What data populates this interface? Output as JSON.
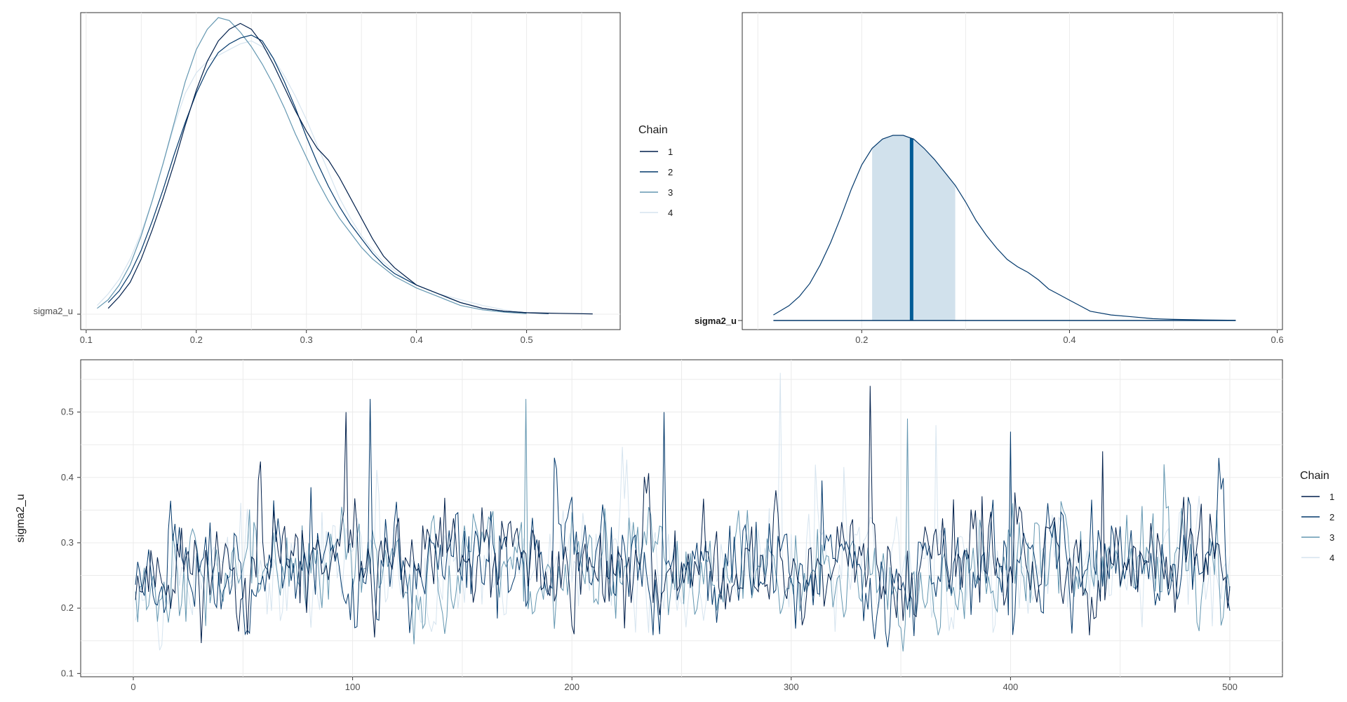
{
  "chart_data": [
    {
      "type": "line",
      "plot": "density-overlay",
      "y_tick_labels": [
        "sigma2_u"
      ],
      "x_ticks": [
        0.1,
        0.2,
        0.3,
        0.4,
        0.5
      ],
      "xlim": [
        0.095,
        0.585
      ],
      "grid": true,
      "legend_title": "Chain",
      "legend_position": "right",
      "series": [
        {
          "name": "1",
          "color": "#011f4b",
          "x": [
            0.12,
            0.13,
            0.14,
            0.15,
            0.16,
            0.17,
            0.18,
            0.19,
            0.2,
            0.21,
            0.22,
            0.23,
            0.24,
            0.25,
            0.26,
            0.27,
            0.28,
            0.29,
            0.3,
            0.31,
            0.32,
            0.33,
            0.34,
            0.35,
            0.36,
            0.37,
            0.38,
            0.39,
            0.4,
            0.42,
            0.44,
            0.46,
            0.48,
            0.5,
            0.53,
            0.56
          ],
          "y": [
            0.02,
            0.06,
            0.11,
            0.19,
            0.29,
            0.4,
            0.52,
            0.65,
            0.77,
            0.87,
            0.94,
            0.98,
            1.0,
            0.98,
            0.93,
            0.86,
            0.78,
            0.7,
            0.63,
            0.57,
            0.53,
            0.47,
            0.4,
            0.33,
            0.26,
            0.2,
            0.16,
            0.13,
            0.1,
            0.07,
            0.04,
            0.02,
            0.01,
            0.005,
            0.003,
            0.001
          ]
        },
        {
          "name": "2",
          "color": "#03396c",
          "x": [
            0.12,
            0.13,
            0.14,
            0.15,
            0.16,
            0.17,
            0.18,
            0.19,
            0.2,
            0.21,
            0.22,
            0.23,
            0.24,
            0.25,
            0.26,
            0.27,
            0.28,
            0.29,
            0.3,
            0.31,
            0.32,
            0.33,
            0.34,
            0.35,
            0.36,
            0.37,
            0.38,
            0.39,
            0.4,
            0.42,
            0.44,
            0.46,
            0.48,
            0.5,
            0.52
          ],
          "y": [
            0.04,
            0.08,
            0.14,
            0.22,
            0.32,
            0.43,
            0.55,
            0.66,
            0.76,
            0.84,
            0.9,
            0.93,
            0.95,
            0.96,
            0.94,
            0.88,
            0.8,
            0.71,
            0.61,
            0.52,
            0.44,
            0.37,
            0.31,
            0.26,
            0.21,
            0.17,
            0.14,
            0.12,
            0.1,
            0.07,
            0.04,
            0.02,
            0.01,
            0.005,
            0.002
          ]
        },
        {
          "name": "3",
          "color": "#6497b1",
          "x": [
            0.11,
            0.12,
            0.13,
            0.14,
            0.15,
            0.16,
            0.17,
            0.18,
            0.19,
            0.2,
            0.21,
            0.22,
            0.23,
            0.24,
            0.25,
            0.26,
            0.27,
            0.28,
            0.29,
            0.3,
            0.31,
            0.32,
            0.33,
            0.34,
            0.35,
            0.36,
            0.37,
            0.38,
            0.39,
            0.4,
            0.42,
            0.44,
            0.46,
            0.48,
            0.5
          ],
          "y": [
            0.02,
            0.05,
            0.1,
            0.17,
            0.27,
            0.39,
            0.52,
            0.66,
            0.8,
            0.91,
            0.98,
            1.02,
            1.01,
            0.97,
            0.92,
            0.86,
            0.79,
            0.71,
            0.62,
            0.54,
            0.46,
            0.39,
            0.33,
            0.28,
            0.23,
            0.19,
            0.16,
            0.13,
            0.11,
            0.09,
            0.06,
            0.03,
            0.015,
            0.007,
            0.002
          ]
        },
        {
          "name": "4",
          "color": "#d6e4ef",
          "x": [
            0.11,
            0.12,
            0.13,
            0.14,
            0.15,
            0.16,
            0.17,
            0.18,
            0.19,
            0.2,
            0.21,
            0.22,
            0.23,
            0.24,
            0.25,
            0.26,
            0.27,
            0.28,
            0.29,
            0.3,
            0.31,
            0.32,
            0.33,
            0.34,
            0.35,
            0.36,
            0.37,
            0.38,
            0.39,
            0.4,
            0.42,
            0.44,
            0.46,
            0.48,
            0.5
          ],
          "y": [
            0.03,
            0.07,
            0.12,
            0.19,
            0.28,
            0.39,
            0.52,
            0.65,
            0.76,
            0.83,
            0.87,
            0.89,
            0.91,
            0.93,
            0.94,
            0.92,
            0.88,
            0.82,
            0.75,
            0.67,
            0.58,
            0.49,
            0.4,
            0.33,
            0.27,
            0.22,
            0.18,
            0.15,
            0.12,
            0.1,
            0.07,
            0.05,
            0.03,
            0.015,
            0.005
          ]
        }
      ]
    },
    {
      "type": "area",
      "plot": "posterior-density-interval",
      "y_tick_labels": [
        "sigma2_u"
      ],
      "x_ticks": [
        0.2,
        0.4,
        0.6
      ],
      "xlim": [
        0.085,
        0.605
      ],
      "grid": true,
      "line_color": "#03396c",
      "shade_color": "#d1e1ec",
      "median_color": "#005b96",
      "median": 0.248,
      "interval": [
        0.21,
        0.29
      ],
      "density": {
        "x": [
          0.115,
          0.13,
          0.14,
          0.15,
          0.16,
          0.17,
          0.18,
          0.19,
          0.2,
          0.21,
          0.22,
          0.23,
          0.24,
          0.25,
          0.26,
          0.27,
          0.28,
          0.29,
          0.3,
          0.31,
          0.32,
          0.33,
          0.34,
          0.35,
          0.36,
          0.37,
          0.38,
          0.39,
          0.4,
          0.41,
          0.42,
          0.44,
          0.46,
          0.48,
          0.5,
          0.53,
          0.56
        ],
        "y": [
          0.03,
          0.08,
          0.13,
          0.2,
          0.3,
          0.42,
          0.56,
          0.71,
          0.84,
          0.93,
          0.98,
          1.0,
          1.0,
          0.98,
          0.93,
          0.87,
          0.8,
          0.73,
          0.64,
          0.54,
          0.46,
          0.39,
          0.33,
          0.29,
          0.26,
          0.22,
          0.17,
          0.14,
          0.11,
          0.08,
          0.05,
          0.03,
          0.02,
          0.01,
          0.006,
          0.003,
          0.001
        ]
      }
    },
    {
      "type": "line",
      "plot": "trace",
      "ylabel": "sigma2_u",
      "x_ticks": [
        0,
        100,
        200,
        300,
        400,
        500
      ],
      "y_ticks": [
        0.1,
        0.2,
        0.3,
        0.4,
        0.5
      ],
      "xlim": [
        -24,
        524
      ],
      "ylim": [
        0.095,
        0.58
      ],
      "grid": true,
      "legend_title": "Chain",
      "legend_position": "right",
      "iterations": 500,
      "chains": [
        {
          "name": "1",
          "color": "#011f4b",
          "seed": 11
        },
        {
          "name": "2",
          "color": "#03396c",
          "seed": 23
        },
        {
          "name": "3",
          "color": "#6497b1",
          "seed": 37
        },
        {
          "name": "4",
          "color": "#d6e4ef",
          "seed": 53
        }
      ],
      "spikes": [
        {
          "x": 97,
          "y": 0.5
        },
        {
          "x": 108,
          "y": 0.52
        },
        {
          "x": 179,
          "y": 0.52
        },
        {
          "x": 295,
          "y": 0.56
        },
        {
          "x": 336,
          "y": 0.54
        },
        {
          "x": 242,
          "y": 0.5
        },
        {
          "x": 353,
          "y": 0.49
        },
        {
          "x": 366,
          "y": 0.48
        },
        {
          "x": 442,
          "y": 0.44
        },
        {
          "x": 400,
          "y": 0.47
        },
        {
          "x": 470,
          "y": 0.42
        }
      ]
    }
  ]
}
